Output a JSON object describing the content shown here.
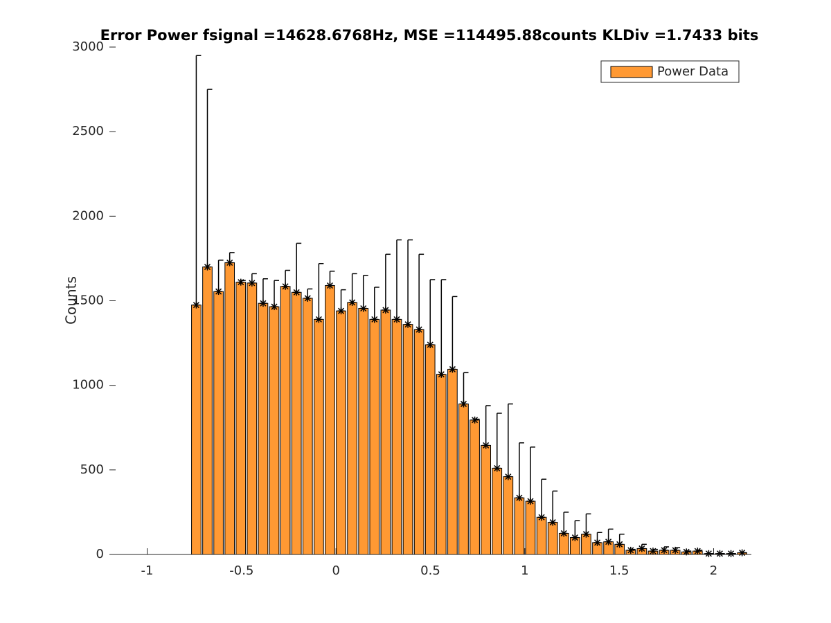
{
  "chart_data": {
    "type": "bar",
    "title": "Error Power fsignal =14628.6768Hz, MSE =114495.88counts KLDiv =1.7433 bits",
    "ylabel": "Counts",
    "x": [
      -0.74,
      -0.681,
      -0.622,
      -0.563,
      -0.504,
      -0.445,
      -0.386,
      -0.327,
      -0.268,
      -0.209,
      -0.15,
      -0.091,
      -0.032,
      0.027,
      0.086,
      0.145,
      0.204,
      0.263,
      0.322,
      0.381,
      0.44,
      0.499,
      0.558,
      0.617,
      0.676,
      0.735,
      0.794,
      0.853,
      0.912,
      0.971,
      1.03,
      1.089,
      1.148,
      1.207,
      1.266,
      1.325,
      1.384,
      1.443,
      1.502,
      1.561,
      1.62,
      1.679,
      1.738,
      1.797,
      1.856,
      1.915,
      1.974,
      2.033,
      2.092,
      2.151
    ],
    "series": [
      {
        "name": "Power Data",
        "color": "#ff9933",
        "values": [
          1475,
          1700,
          1555,
          1725,
          1610,
          1605,
          1485,
          1465,
          1585,
          1550,
          1515,
          1390,
          1590,
          1440,
          1490,
          1455,
          1390,
          1445,
          1390,
          1360,
          1330,
          1240,
          1065,
          1095,
          890,
          795,
          645,
          510,
          460,
          335,
          315,
          220,
          190,
          125,
          100,
          120,
          70,
          75,
          60,
          25,
          35,
          20,
          25,
          25,
          15,
          20,
          5,
          5,
          5,
          10
        ],
        "errors": [
          1475,
          1050,
          185,
          60,
          10,
          55,
          145,
          155,
          95,
          290,
          55,
          330,
          85,
          125,
          170,
          195,
          190,
          330,
          470,
          500,
          445,
          385,
          560,
          430,
          185,
          5,
          235,
          325,
          430,
          325,
          320,
          225,
          185,
          125,
          100,
          120,
          60,
          75,
          60,
          5,
          25,
          10,
          20,
          15,
          5,
          5,
          0,
          0,
          0,
          0
        ]
      }
    ],
    "xlim": [
      -1.2,
      2.2
    ],
    "ylim": [
      0,
      3000
    ],
    "xticks": [
      -1,
      -0.5,
      0,
      0.5,
      1,
      1.5,
      2
    ],
    "yticks": [
      0,
      500,
      1000,
      1500,
      2000,
      2500,
      3000
    ],
    "grid": false,
    "legend": "upper right"
  }
}
